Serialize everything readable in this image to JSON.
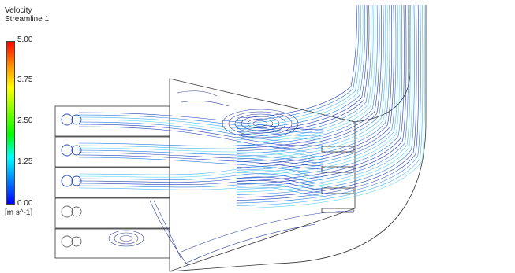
{
  "legend": {
    "title_line1": "Velocity",
    "title_line2": "Streamline 1",
    "ticks": [
      "5.00",
      "3.75",
      "2.50",
      "1.25",
      "0.00"
    ],
    "unit": "[m s^-1]",
    "gradient_colors": [
      "#ff0000",
      "#ff8c00",
      "#ffff00",
      "#7fff00",
      "#00ff00",
      "#00ffff",
      "#0080ff",
      "#0000ff"
    ]
  },
  "colors": {
    "geometry_outline": "#333333",
    "streamline_dark": "#1f3fb8",
    "streamline_mid": "#2a7be0",
    "streamline_light": "#49b4f0",
    "streamline_cyan": "#5fd6f4"
  }
}
